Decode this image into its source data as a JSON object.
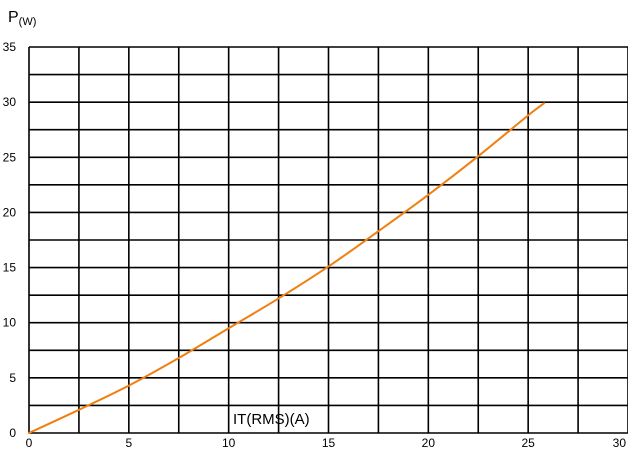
{
  "chart_data": {
    "type": "line",
    "title": "",
    "ylabel": {
      "main": "P",
      "unit": "(W)"
    },
    "xlabel": "IT(RMS)(A)",
    "xlim": [
      0,
      30
    ],
    "ylim": [
      0,
      35
    ],
    "xticks": [
      0,
      5,
      10,
      15,
      20,
      25,
      30
    ],
    "yticks": [
      0,
      5,
      10,
      15,
      20,
      25,
      30,
      35
    ],
    "grid": true,
    "legend": "none",
    "series": [
      {
        "color": "#f07f0f",
        "x": [
          0,
          2.5,
          5,
          7.5,
          10,
          12.5,
          15,
          17.5,
          20,
          22.5,
          25,
          25.8
        ],
        "y": [
          0,
          2.1,
          4.3,
          6.8,
          9.5,
          12.2,
          15.1,
          18.3,
          21.6,
          25.1,
          28.8,
          29.9
        ]
      }
    ]
  }
}
